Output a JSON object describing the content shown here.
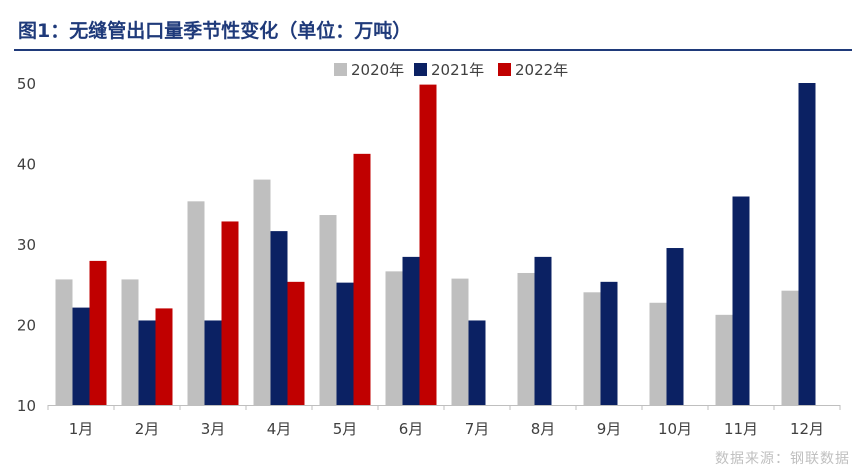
{
  "title": "图1：无缝管出口量季节性变化（单位：万吨）",
  "source_note": "数据来源：钢联数据",
  "colors": {
    "title": "#1f3a7a",
    "s2020": "#bfbfbf",
    "s2021": "#0b2163",
    "s2022": "#c00000",
    "axis": "#bfbfbf",
    "text": "#404040"
  },
  "chart_data": {
    "type": "bar",
    "title": "图1：无缝管出口量季节性变化（单位：万吨）",
    "xlabel": "",
    "ylabel": "",
    "ylim": [
      10,
      50
    ],
    "yticks": [
      10,
      20,
      30,
      40,
      50
    ],
    "grid": false,
    "legend_position": "top-center",
    "categories": [
      "1月",
      "2月",
      "3月",
      "4月",
      "5月",
      "6月",
      "7月",
      "8月",
      "9月",
      "10月",
      "11月",
      "12月"
    ],
    "series": [
      {
        "name": "2020年",
        "values": [
          25.6,
          25.6,
          35.3,
          38.0,
          33.6,
          26.6,
          25.7,
          26.4,
          24.0,
          22.7,
          21.2,
          24.2
        ]
      },
      {
        "name": "2021年",
        "values": [
          22.1,
          20.5,
          20.5,
          31.6,
          25.2,
          28.4,
          20.5,
          28.4,
          25.3,
          29.5,
          35.9,
          50.0
        ]
      },
      {
        "name": "2022年",
        "values": [
          27.9,
          22.0,
          32.8,
          25.3,
          41.2,
          49.8,
          null,
          null,
          null,
          null,
          null,
          null
        ]
      }
    ]
  }
}
